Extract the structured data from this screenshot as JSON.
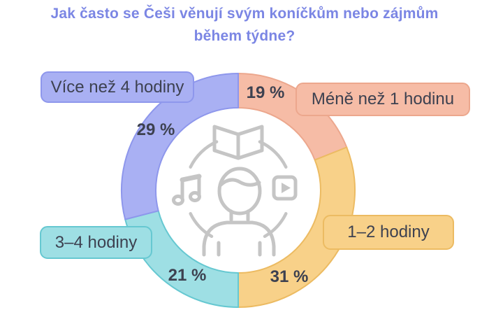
{
  "title": {
    "line1": "Jak často se Češi věnují svým koníčkům nebo zájmům",
    "line2": "během týdne?",
    "color": "#7b86e4"
  },
  "chart_data": {
    "type": "pie",
    "subtype": "donut",
    "title": "Jak často se Češi věnují svým koníčkům nebo zájmům během týdne?",
    "unit": "%",
    "start_angle_deg": 0,
    "direction": "clockwise",
    "segments": [
      {
        "label": "Méně než 1 hodinu",
        "value": 19,
        "pct_label": "19 %",
        "color": "#f6bca6",
        "border": "#eca78d"
      },
      {
        "label": "1–2 hodiny",
        "value": 31,
        "pct_label": "31 %",
        "color": "#f8d189",
        "border": "#ecbb62"
      },
      {
        "label": "3–4 hodiny",
        "value": 21,
        "pct_label": "21 %",
        "color": "#9edfe4",
        "border": "#66c8d1"
      },
      {
        "label": "Více než 4 hodiny",
        "value": 29,
        "pct_label": "29 %",
        "color": "#a9b0f3",
        "border": "#8e97ec"
      }
    ],
    "center_icon": "person-with-hobbies-book-music-video",
    "text_color": "#3d4150",
    "icon_color": "#c5c5c5"
  }
}
